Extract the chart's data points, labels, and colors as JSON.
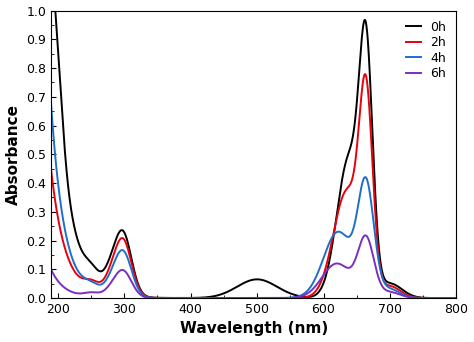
{
  "xlabel": "Wavelength (nm)",
  "ylabel": "Absorbance",
  "xlim": [
    190,
    800
  ],
  "ylim": [
    0.0,
    1.0
  ],
  "xticks": [
    200,
    300,
    400,
    500,
    600,
    700,
    800
  ],
  "yticks": [
    0.0,
    0.1,
    0.2,
    0.3,
    0.4,
    0.5,
    0.6,
    0.7,
    0.8,
    0.9,
    1.0
  ],
  "series": [
    {
      "label": "0h",
      "color": "#000000",
      "lw": 1.4
    },
    {
      "label": "2h",
      "color": "#e8000e",
      "lw": 1.4
    },
    {
      "label": "4h",
      "color": "#1e6fcc",
      "lw": 1.4
    },
    {
      "label": "6h",
      "color": "#7b2fbe",
      "lw": 1.4
    }
  ],
  "legend_loc": "upper right",
  "legend_fontsize": 9,
  "axis_label_fontsize": 11,
  "tick_fontsize": 9
}
